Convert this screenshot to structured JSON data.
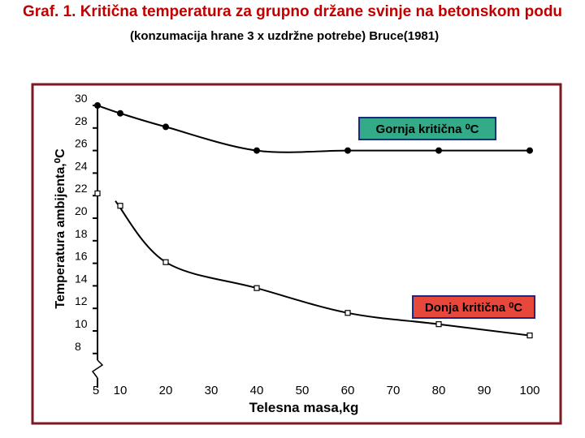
{
  "title": "Graf. 1. Kritična temperatura za grupno držane svinje na betonskom podu",
  "subtitle": "(konzumacija hrane 3 x uzdržne potrebe)   Bruce(1981)",
  "colors": {
    "title": "#c00000",
    "frame": "#7a1a22",
    "upper_label_bg": "#33aa88",
    "upper_label_border": "#1a2a80",
    "lower_label_bg": "#e8483b",
    "lower_label_border": "#1a2a80"
  },
  "chart_data": {
    "type": "scatter",
    "xlabel": "Telesna masa,kg",
    "ylabel": "Temperatura ambijenta,⁰C",
    "x_ticks": [
      "5",
      "10",
      "20",
      "30",
      "40",
      "50",
      "60",
      "70",
      "80",
      "90",
      "100"
    ],
    "y_ticks": [
      "30",
      "28",
      "26",
      "24",
      "22",
      "20",
      "18",
      "16",
      "14",
      "12",
      "10",
      "8"
    ],
    "xlim": [
      5,
      100
    ],
    "ylim": [
      8,
      30
    ],
    "axis_break": true,
    "grid": false,
    "series": [
      {
        "name": "Gornja kritična ⁰C",
        "marker": "filled-circle",
        "x": [
          5,
          10,
          20,
          40,
          60,
          80,
          100
        ],
        "y": [
          30,
          29.3,
          28.1,
          26,
          26,
          26,
          26
        ]
      },
      {
        "name": "Donja kritična ⁰C",
        "marker": "open-square",
        "x": [
          5,
          10,
          20,
          40,
          60,
          80,
          100
        ],
        "y": [
          22.2,
          21.1,
          16.1,
          13.8,
          11.6,
          10.6,
          9.6
        ]
      }
    ]
  }
}
